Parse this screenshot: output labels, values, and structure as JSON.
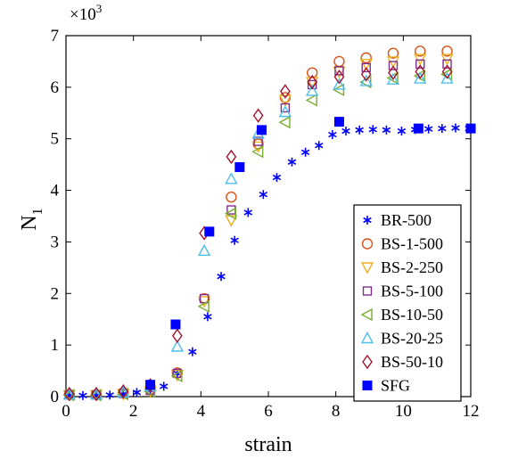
{
  "chart_data": {
    "type": "scatter",
    "xlabel": "strain",
    "ylabel": "N",
    "ylabel_subscript": "1",
    "scale_note": "×10",
    "scale_exponent": "3",
    "xlim": [
      0,
      12
    ],
    "ylim": [
      0,
      7
    ],
    "xticks": [
      "0",
      "2",
      "4",
      "6",
      "8",
      "10",
      "12"
    ],
    "yticks": [
      "0",
      "1",
      "2",
      "3",
      "4",
      "5",
      "6",
      "7"
    ],
    "grid": false,
    "legend_position": "bottom-right",
    "series": [
      {
        "name": "BR-500",
        "marker": "asterisk",
        "color": "#0000ff",
        "points": [
          [
            0.1,
            0.02
          ],
          [
            0.5,
            0.02
          ],
          [
            0.9,
            0.02
          ],
          [
            1.3,
            0.03
          ],
          [
            1.7,
            0.05
          ],
          [
            2.1,
            0.08
          ],
          [
            2.5,
            0.12
          ],
          [
            2.9,
            0.2
          ],
          [
            3.3,
            0.45
          ],
          [
            3.75,
            0.87
          ],
          [
            4.2,
            1.55
          ],
          [
            4.6,
            2.33
          ],
          [
            5.0,
            3.03
          ],
          [
            5.4,
            3.57
          ],
          [
            5.85,
            3.92
          ],
          [
            6.25,
            4.25
          ],
          [
            6.7,
            4.55
          ],
          [
            7.1,
            4.74
          ],
          [
            7.5,
            4.87
          ],
          [
            7.9,
            5.08
          ],
          [
            8.3,
            5.15
          ],
          [
            8.7,
            5.17
          ],
          [
            9.1,
            5.18
          ],
          [
            9.5,
            5.17
          ],
          [
            9.95,
            5.15
          ],
          [
            10.35,
            5.18
          ],
          [
            10.75,
            5.19
          ],
          [
            11.15,
            5.2
          ],
          [
            11.55,
            5.21
          ],
          [
            11.95,
            5.2
          ]
        ]
      },
      {
        "name": "BS-1-500",
        "marker": "circle",
        "color": "#d95319",
        "points": [
          [
            0.1,
            0.04
          ],
          [
            0.9,
            0.04
          ],
          [
            1.7,
            0.07
          ],
          [
            2.5,
            0.13
          ],
          [
            3.3,
            0.46
          ],
          [
            4.1,
            1.9
          ],
          [
            4.9,
            3.87
          ],
          [
            5.7,
            4.9
          ],
          [
            6.5,
            5.8
          ],
          [
            7.3,
            6.28
          ],
          [
            8.1,
            6.5
          ],
          [
            8.9,
            6.57
          ],
          [
            9.7,
            6.66
          ],
          [
            10.5,
            6.7
          ],
          [
            11.3,
            6.7
          ]
        ]
      },
      {
        "name": "BS-2-250",
        "marker": "triangle-down",
        "color": "#edb120",
        "points": [
          [
            0.1,
            0.03
          ],
          [
            0.9,
            0.03
          ],
          [
            1.7,
            0.05
          ],
          [
            2.5,
            0.1
          ],
          [
            3.3,
            0.42
          ],
          [
            4.1,
            1.85
          ],
          [
            4.9,
            3.42
          ],
          [
            5.7,
            4.85
          ],
          [
            6.5,
            5.75
          ],
          [
            7.3,
            6.1
          ],
          [
            8.1,
            6.3
          ],
          [
            8.9,
            6.45
          ],
          [
            9.7,
            6.5
          ],
          [
            10.5,
            6.55
          ],
          [
            11.3,
            6.55
          ]
        ]
      },
      {
        "name": "BS-5-100",
        "marker": "square",
        "color": "#7e2f8e",
        "points": [
          [
            0.1,
            0.03
          ],
          [
            0.9,
            0.03
          ],
          [
            1.7,
            0.06
          ],
          [
            2.5,
            0.12
          ],
          [
            3.3,
            0.45
          ],
          [
            4.1,
            1.9
          ],
          [
            4.9,
            3.62
          ],
          [
            5.7,
            4.95
          ],
          [
            6.5,
            5.6
          ],
          [
            7.3,
            6.05
          ],
          [
            8.1,
            6.32
          ],
          [
            8.9,
            6.38
          ],
          [
            9.7,
            6.42
          ],
          [
            10.5,
            6.45
          ],
          [
            11.3,
            6.45
          ]
        ]
      },
      {
        "name": "BS-10-50",
        "marker": "triangle-left",
        "color": "#77ac30",
        "points": [
          [
            0.1,
            0.03
          ],
          [
            0.9,
            0.03
          ],
          [
            1.7,
            0.05
          ],
          [
            2.5,
            0.1
          ],
          [
            3.3,
            0.4
          ],
          [
            4.1,
            1.75
          ],
          [
            4.9,
            3.55
          ],
          [
            5.7,
            4.75
          ],
          [
            6.5,
            5.32
          ],
          [
            7.3,
            5.75
          ],
          [
            8.1,
            5.95
          ],
          [
            8.9,
            6.1
          ],
          [
            9.7,
            6.18
          ],
          [
            10.5,
            6.22
          ],
          [
            11.3,
            6.25
          ]
        ]
      },
      {
        "name": "BS-20-25",
        "marker": "triangle-up",
        "color": "#4dbeee",
        "points": [
          [
            0.1,
            0.04
          ],
          [
            0.9,
            0.04
          ],
          [
            1.7,
            0.08
          ],
          [
            2.5,
            0.2
          ],
          [
            3.3,
            0.97
          ],
          [
            4.1,
            2.83
          ],
          [
            4.9,
            4.22
          ],
          [
            5.7,
            5.1
          ],
          [
            6.5,
            5.52
          ],
          [
            7.3,
            5.93
          ],
          [
            8.1,
            6.05
          ],
          [
            8.9,
            6.12
          ],
          [
            9.7,
            6.15
          ],
          [
            10.5,
            6.17
          ],
          [
            11.3,
            6.17
          ]
        ]
      },
      {
        "name": "BS-50-10",
        "marker": "diamond",
        "color": "#a2142f",
        "points": [
          [
            0.1,
            0.05
          ],
          [
            0.9,
            0.05
          ],
          [
            1.7,
            0.1
          ],
          [
            2.5,
            0.22
          ],
          [
            3.3,
            1.18
          ],
          [
            4.1,
            3.17
          ],
          [
            4.9,
            4.65
          ],
          [
            5.7,
            5.45
          ],
          [
            6.5,
            5.92
          ],
          [
            7.3,
            6.1
          ],
          [
            8.1,
            6.2
          ],
          [
            8.9,
            6.25
          ],
          [
            9.7,
            6.28
          ],
          [
            10.5,
            6.3
          ],
          [
            11.3,
            6.3
          ]
        ]
      },
      {
        "name": "SFG",
        "marker": "filled-square",
        "color": "#0000ff",
        "points": [
          [
            2.5,
            0.23
          ],
          [
            3.25,
            1.4
          ],
          [
            4.25,
            3.2
          ],
          [
            5.15,
            4.45
          ],
          [
            5.8,
            5.17
          ],
          [
            8.1,
            5.33
          ],
          [
            10.45,
            5.2
          ],
          [
            12.0,
            5.2
          ]
        ]
      }
    ]
  }
}
